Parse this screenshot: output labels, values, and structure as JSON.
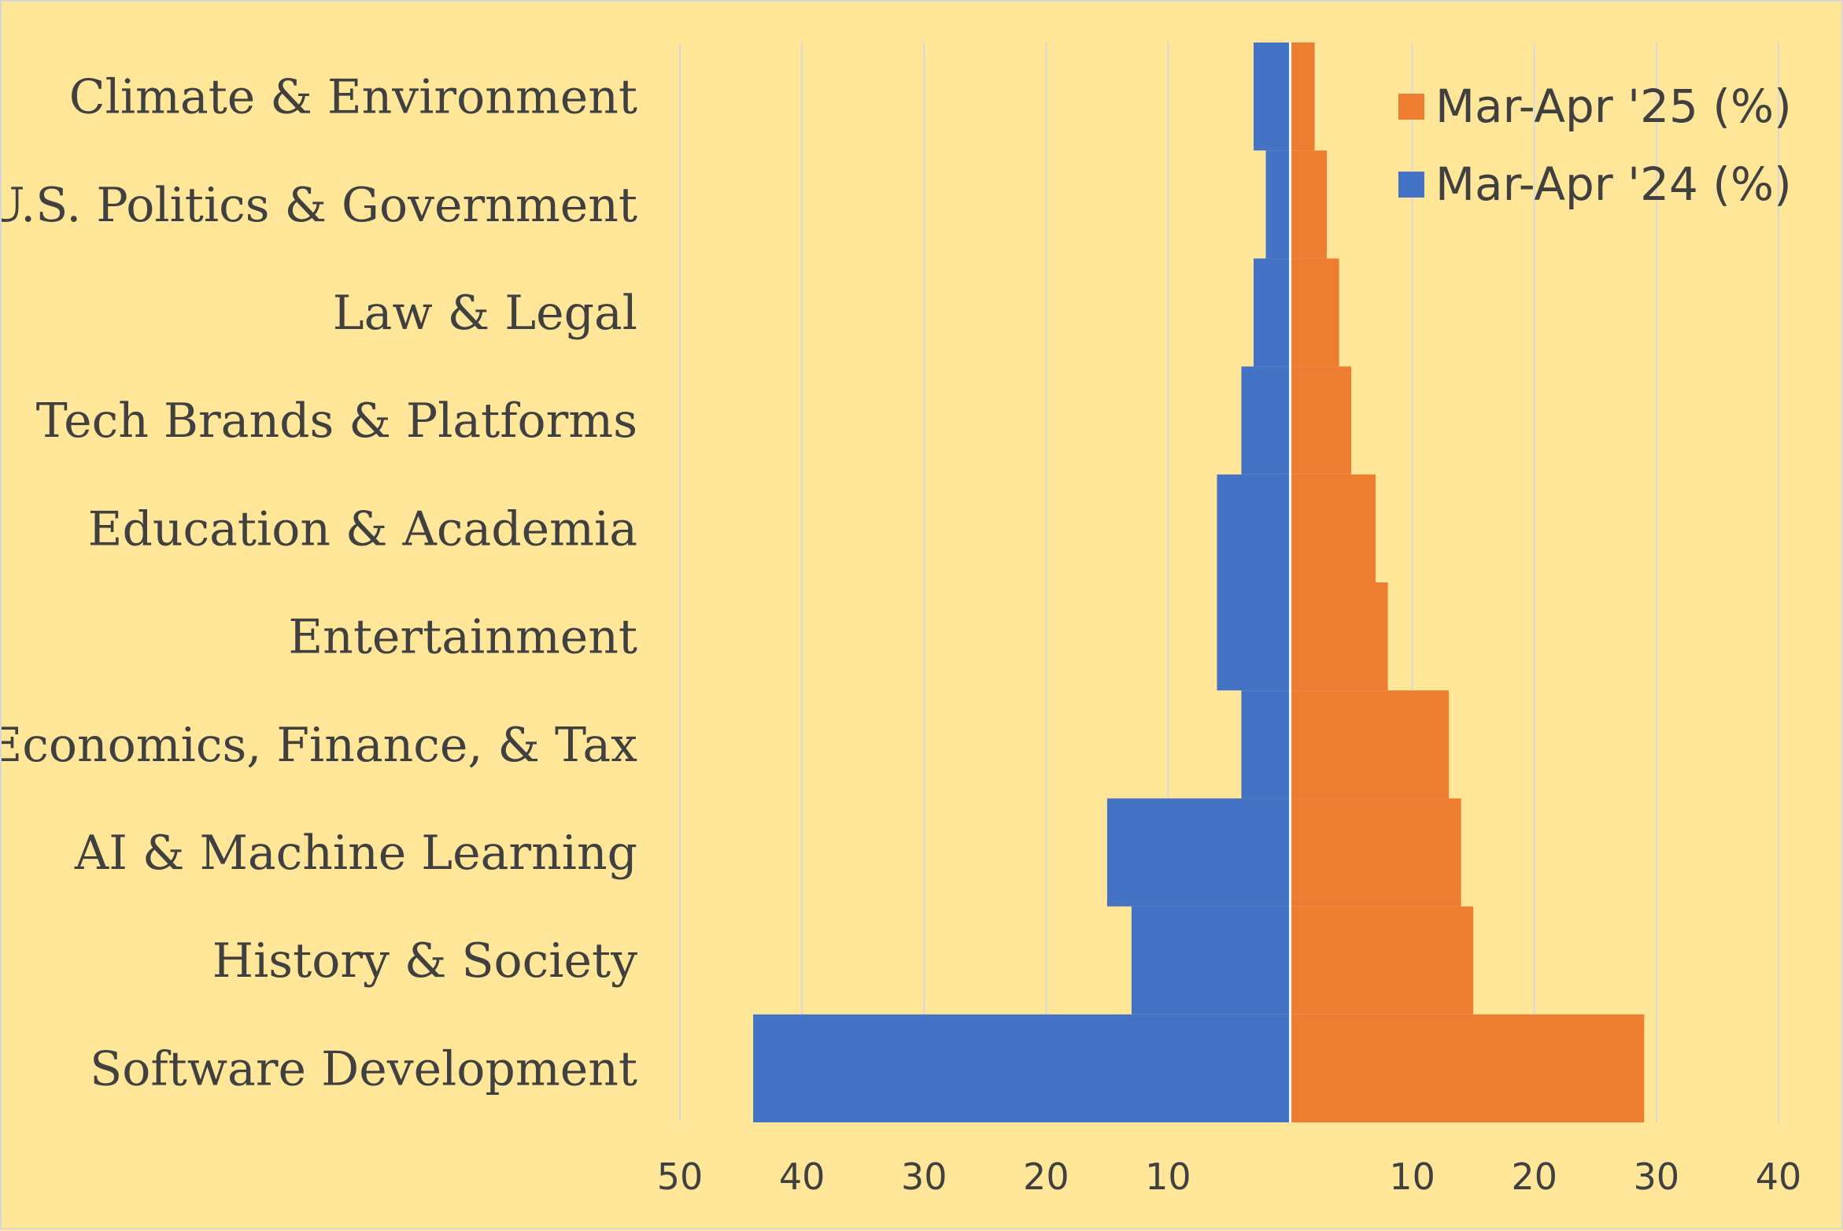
{
  "chart_data": {
    "type": "bar",
    "orientation": "horizontal",
    "layout": "butterfly",
    "title": "",
    "categories": [
      "Climate & Environment",
      "U.S. Politics & Government",
      "Law & Legal",
      "Tech Brands & Platforms",
      "Education & Academia",
      "Entertainment",
      "Economics, Finance, & Tax",
      "AI & Machine Learning",
      "History & Society",
      "Software Development"
    ],
    "series": [
      {
        "name": "Mar-Apr '25 (%)",
        "side": "right",
        "color": "#ed7d31",
        "values": [
          2,
          3,
          4,
          5,
          7,
          8,
          13,
          14,
          15,
          29
        ]
      },
      {
        "name": "Mar-Apr '24 (%)",
        "side": "left",
        "color": "#4472c4",
        "values": [
          3,
          2,
          3,
          4,
          6,
          6,
          4,
          15,
          13,
          44
        ]
      }
    ],
    "xlim": [
      -50,
      40
    ],
    "x_tick_values": [
      -50,
      -40,
      -30,
      -20,
      -10,
      10,
      20,
      30,
      40
    ],
    "x_tick_labels": [
      "50",
      "40",
      "30",
      "20",
      "10",
      "10",
      "20",
      "30",
      "40"
    ],
    "grid": true,
    "legend_position": "top-right",
    "grid_color": "#d9d9d9",
    "axis_color": "#ffffff",
    "background": "#ffe699"
  }
}
